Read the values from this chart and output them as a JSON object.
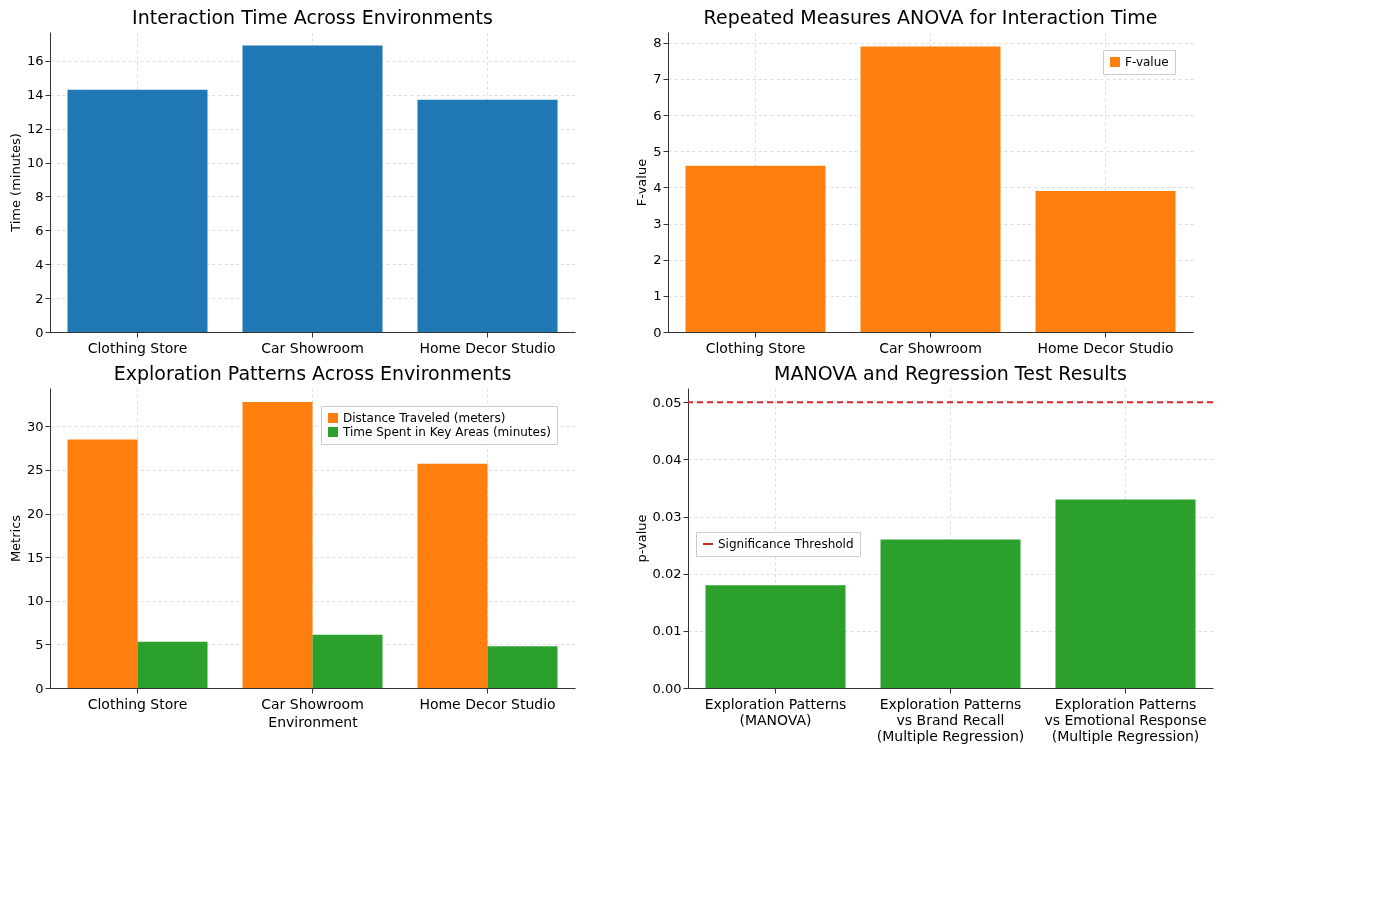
{
  "chart_data": [
    {
      "type": "bar",
      "title": "Interaction Time Across Environments",
      "ylabel": "Time (minutes)",
      "categories": [
        "Clothing Store",
        "Car Showroom",
        "Home Decor Studio"
      ],
      "values": [
        14.3,
        16.9,
        13.7
      ],
      "color": "#1f77b4",
      "ylim": [
        0,
        17.7
      ],
      "yticks": [
        0,
        2,
        4,
        6,
        8,
        10,
        12,
        14,
        16
      ],
      "grid": true
    },
    {
      "type": "bar",
      "title": "Repeated Measures ANOVA for Interaction Time",
      "ylabel": "F-value",
      "categories": [
        "Clothing Store",
        "Car Showroom",
        "Home Decor Studio"
      ],
      "series": [
        {
          "name": "F-value",
          "color": "#ff7f0e",
          "values": [
            4.6,
            7.9,
            3.9
          ]
        }
      ],
      "ylim": [
        0,
        8.3
      ],
      "yticks": [
        0,
        1,
        2,
        3,
        4,
        5,
        6,
        7,
        8
      ],
      "grid": true,
      "legend": "top right"
    },
    {
      "type": "bar",
      "title": "Exploration Patterns Across Environments",
      "xlabel": "Environment",
      "ylabel": "Metrics",
      "categories": [
        "Clothing Store",
        "Car Showroom",
        "Home Decor Studio"
      ],
      "series": [
        {
          "name": "Distance Traveled (meters)",
          "color": "#ff7f0e",
          "values": [
            28.5,
            32.8,
            25.7
          ]
        },
        {
          "name": "Time Spent in Key Areas (minutes)",
          "color": "#2ca02c",
          "values": [
            5.3,
            6.1,
            4.8
          ]
        }
      ],
      "ylim": [
        0,
        34.4
      ],
      "yticks": [
        0,
        5,
        10,
        15,
        20,
        25,
        30
      ],
      "grid": true,
      "legend": "top right"
    },
    {
      "type": "bar",
      "title": "MANOVA and Regression Test Results",
      "ylabel": "p-value",
      "categories": [
        "Exploration Patterns\n(MANOVA)",
        "Exploration Patterns\nvs Brand Recall\n(Multiple Regression)",
        "Exploration Patterns\nvs Emotional Response\n(Multiple Regression)"
      ],
      "values": [
        0.018,
        0.026,
        0.033
      ],
      "color": "#2ca02c",
      "ylim": [
        0,
        0.0525
      ],
      "yticks": [
        {
          "value": 0,
          "label": "0.00"
        },
        {
          "value": 0.01,
          "label": "0.01"
        },
        {
          "value": 0.02,
          "label": "0.02"
        },
        {
          "value": 0.03,
          "label": "0.03"
        },
        {
          "value": 0.04,
          "label": "0.04"
        },
        {
          "value": 0.05,
          "label": "0.05"
        }
      ],
      "ref_lines": [
        {
          "axis": "y",
          "value": 0.05,
          "label": "Significance Threshold",
          "color": "#d62728",
          "line_style": "dashed"
        }
      ],
      "grid": true,
      "legend": "center left"
    }
  ]
}
